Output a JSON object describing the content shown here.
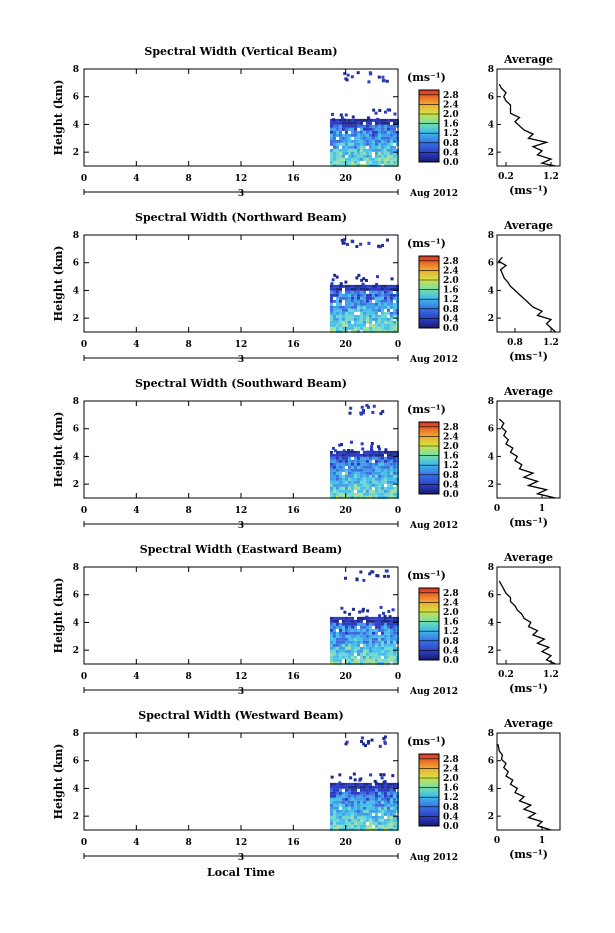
{
  "chart_data": [
    {
      "type": "heatmap",
      "title": "Spectral Width (Vertical Beam)",
      "ylabel": "Height (km)",
      "xlim": [
        0,
        24
      ],
      "ylim": [
        1,
        8
      ],
      "xticks": [
        "0",
        "4",
        "8",
        "12",
        "16",
        "20",
        "0"
      ],
      "yticks": [
        "2",
        "4",
        "6",
        "8"
      ],
      "date_label": "3",
      "month_label": "Aug 2012",
      "data_start_hour": 18.8,
      "colorbar": {
        "unit": "(ms⁻¹)",
        "ticks": [
          "0.0",
          "0.4",
          "0.8",
          "1.2",
          "1.6",
          "2.0",
          "2.4",
          "2.8"
        ],
        "range": [
          0,
          3.0
        ]
      },
      "average": {
        "title": "Average",
        "xlabel": "(ms⁻¹)",
        "xlim": [
          0,
          1.4
        ],
        "xticks": [
          "0.2",
          "1.2"
        ],
        "yticks": [
          "2",
          "4",
          "6",
          "8"
        ],
        "profile": [
          [
            1.3,
            1.0
          ],
          [
            1.0,
            1.2
          ],
          [
            1.2,
            1.5
          ],
          [
            0.9,
            1.8
          ],
          [
            1.0,
            2.1
          ],
          [
            0.8,
            2.4
          ],
          [
            1.1,
            2.7
          ],
          [
            0.7,
            3.0
          ],
          [
            0.8,
            3.3
          ],
          [
            0.6,
            3.6
          ],
          [
            0.5,
            3.9
          ],
          [
            0.4,
            4.2
          ],
          [
            0.5,
            4.5
          ],
          [
            0.3,
            4.8
          ],
          [
            0.3,
            5.1
          ],
          [
            0.3,
            5.4
          ],
          [
            0.2,
            5.7
          ],
          [
            0.15,
            6.0
          ],
          [
            0.2,
            6.3
          ],
          [
            0.1,
            6.6
          ],
          [
            0.05,
            6.9
          ]
        ]
      }
    },
    {
      "type": "heatmap",
      "title": "Spectral Width (Northward Beam)",
      "ylabel": "Height (km)",
      "xlim": [
        0,
        24
      ],
      "ylim": [
        1,
        8
      ],
      "xticks": [
        "0",
        "4",
        "8",
        "12",
        "16",
        "20",
        "0"
      ],
      "yticks": [
        "2",
        "4",
        "6",
        "8"
      ],
      "date_label": "3",
      "month_label": "Aug 2012",
      "data_start_hour": 18.8,
      "colorbar": {
        "unit": "(ms⁻¹)",
        "ticks": [
          "0.0",
          "0.4",
          "0.8",
          "1.2",
          "1.6",
          "2.0",
          "2.4",
          "2.8"
        ],
        "range": [
          0,
          3.0
        ]
      },
      "average": {
        "title": "Average",
        "xlabel": "(ms⁻¹)",
        "xlim": [
          0.6,
          1.3
        ],
        "xticks": [
          "0.8",
          "1.2"
        ],
        "yticks": [
          "2",
          "4",
          "6",
          "8"
        ],
        "profile": [
          [
            1.25,
            1.0
          ],
          [
            1.2,
            1.3
          ],
          [
            1.15,
            1.6
          ],
          [
            1.2,
            1.9
          ],
          [
            1.05,
            2.2
          ],
          [
            1.1,
            2.5
          ],
          [
            1.0,
            2.8
          ],
          [
            0.95,
            3.1
          ],
          [
            0.9,
            3.4
          ],
          [
            0.85,
            3.7
          ],
          [
            0.8,
            4.0
          ],
          [
            0.75,
            4.3
          ],
          [
            0.72,
            4.6
          ],
          [
            0.68,
            4.9
          ],
          [
            0.66,
            5.2
          ],
          [
            0.64,
            5.5
          ],
          [
            0.7,
            5.8
          ],
          [
            0.62,
            6.1
          ],
          [
            0.66,
            6.4
          ]
        ]
      }
    },
    {
      "type": "heatmap",
      "title": "Spectral Width (Southward Beam)",
      "ylabel": "Height (km)",
      "xlim": [
        0,
        24
      ],
      "ylim": [
        1,
        8
      ],
      "xticks": [
        "0",
        "4",
        "8",
        "12",
        "16",
        "20",
        "0"
      ],
      "yticks": [
        "2",
        "4",
        "6",
        "8"
      ],
      "date_label": "3",
      "month_label": "Aug 2012",
      "data_start_hour": 18.8,
      "colorbar": {
        "unit": "(ms⁻¹)",
        "ticks": [
          "0.0",
          "0.4",
          "0.8",
          "1.2",
          "1.6",
          "2.0",
          "2.4",
          "2.8"
        ],
        "range": [
          0,
          3.0
        ]
      },
      "average": {
        "title": "Average",
        "xlabel": "(ms⁻¹)",
        "xlim": [
          0,
          1.4
        ],
        "xticks": [
          "0",
          "1"
        ],
        "yticks": [
          "2",
          "4",
          "6",
          "8"
        ],
        "profile": [
          [
            1.3,
            1.0
          ],
          [
            0.9,
            1.3
          ],
          [
            1.1,
            1.6
          ],
          [
            0.7,
            1.9
          ],
          [
            0.9,
            2.2
          ],
          [
            0.6,
            2.5
          ],
          [
            0.8,
            2.8
          ],
          [
            0.5,
            3.1
          ],
          [
            0.55,
            3.4
          ],
          [
            0.4,
            3.7
          ],
          [
            0.45,
            4.0
          ],
          [
            0.3,
            4.3
          ],
          [
            0.35,
            4.6
          ],
          [
            0.2,
            4.9
          ],
          [
            0.25,
            5.2
          ],
          [
            0.15,
            5.5
          ],
          [
            0.2,
            5.8
          ],
          [
            0.1,
            6.1
          ],
          [
            0.15,
            6.4
          ],
          [
            0.05,
            6.7
          ]
        ]
      }
    },
    {
      "type": "heatmap",
      "title": "Spectral Width (Eastward Beam)",
      "ylabel": "Height (km)",
      "xlim": [
        0,
        24
      ],
      "ylim": [
        1,
        8
      ],
      "xticks": [
        "0",
        "4",
        "8",
        "12",
        "16",
        "20",
        "0"
      ],
      "yticks": [
        "2",
        "4",
        "6",
        "8"
      ],
      "date_label": "3",
      "month_label": "Aug 2012",
      "data_start_hour": 18.8,
      "colorbar": {
        "unit": "(ms⁻¹)",
        "ticks": [
          "0.0",
          "0.4",
          "0.8",
          "1.2",
          "1.6",
          "2.0",
          "2.4",
          "2.8"
        ],
        "range": [
          0,
          3.0
        ]
      },
      "average": {
        "title": "Average",
        "xlabel": "(ms⁻¹)",
        "xlim": [
          0,
          1.4
        ],
        "xticks": [
          "0.2",
          "1.2"
        ],
        "yticks": [
          "2",
          "4",
          "6",
          "8"
        ],
        "profile": [
          [
            1.3,
            1.0
          ],
          [
            1.1,
            1.3
          ],
          [
            1.2,
            1.6
          ],
          [
            1.0,
            1.9
          ],
          [
            1.15,
            2.2
          ],
          [
            0.9,
            2.5
          ],
          [
            1.05,
            2.8
          ],
          [
            0.8,
            3.1
          ],
          [
            0.9,
            3.4
          ],
          [
            0.7,
            3.7
          ],
          [
            0.75,
            4.0
          ],
          [
            0.6,
            4.3
          ],
          [
            0.55,
            4.6
          ],
          [
            0.45,
            4.9
          ],
          [
            0.4,
            5.2
          ],
          [
            0.3,
            5.5
          ],
          [
            0.3,
            5.8
          ],
          [
            0.2,
            6.1
          ],
          [
            0.15,
            6.4
          ],
          [
            0.1,
            6.7
          ],
          [
            0.05,
            7.0
          ]
        ]
      }
    },
    {
      "type": "heatmap",
      "title": "Spectral Width (Westward Beam)",
      "ylabel": "Height (km)",
      "xlabel": "Local Time",
      "xlim": [
        0,
        24
      ],
      "ylim": [
        1,
        8
      ],
      "xticks": [
        "0",
        "4",
        "8",
        "12",
        "16",
        "20",
        "0"
      ],
      "yticks": [
        "2",
        "4",
        "6",
        "8"
      ],
      "date_label": "3",
      "month_label": "Aug 2012",
      "data_start_hour": 18.8,
      "colorbar": {
        "unit": "(ms⁻¹)",
        "ticks": [
          "0.0",
          "0.4",
          "0.8",
          "1.2",
          "1.6",
          "2.0",
          "2.4",
          "2.8"
        ],
        "range": [
          0,
          3.0
        ]
      },
      "average": {
        "title": "Average",
        "xlabel": "(ms⁻¹)",
        "xlim": [
          0,
          1.4
        ],
        "xticks": [
          "0",
          "1"
        ],
        "yticks": [
          "2",
          "4",
          "6",
          "8"
        ],
        "profile": [
          [
            1.2,
            1.0
          ],
          [
            0.9,
            1.3
          ],
          [
            1.0,
            1.6
          ],
          [
            0.7,
            1.9
          ],
          [
            0.85,
            2.2
          ],
          [
            0.6,
            2.5
          ],
          [
            0.75,
            2.8
          ],
          [
            0.5,
            3.1
          ],
          [
            0.6,
            3.4
          ],
          [
            0.4,
            3.7
          ],
          [
            0.45,
            4.0
          ],
          [
            0.3,
            4.3
          ],
          [
            0.35,
            4.6
          ],
          [
            0.2,
            4.9
          ],
          [
            0.25,
            5.2
          ],
          [
            0.15,
            5.5
          ],
          [
            0.2,
            5.8
          ],
          [
            0.1,
            6.1
          ],
          [
            0.12,
            6.4
          ],
          [
            0.05,
            6.7
          ],
          [
            0.02,
            7.2
          ]
        ]
      }
    }
  ]
}
